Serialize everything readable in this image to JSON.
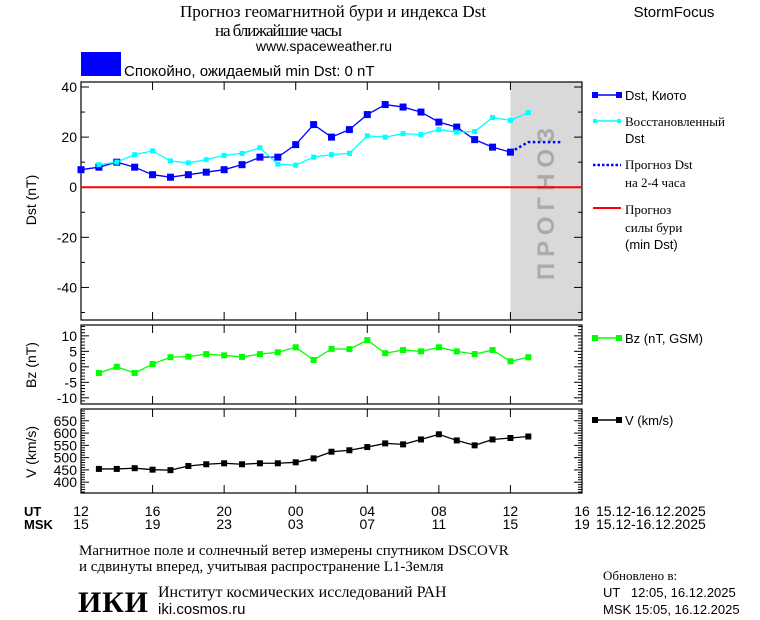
{
  "header": {
    "title_line1": "Прогноз геомагнитной бури и индекса Dst",
    "title_line2": "на ближайшие часы",
    "url": "www.spaceweather.ru",
    "brand": "StormFocus",
    "status_text": "Спокойно, ожидаемый min Dst: 0 nT",
    "status_color": "#0000ff"
  },
  "legend": {
    "dst_kyoto": "Dst, Киото",
    "restored_1": "Восстановленный",
    "restored_2": "Dst",
    "forecast_1": "Прогноз Dst",
    "forecast_2": "на 2-4 часа",
    "storm_1": "Прогноз",
    "storm_2": "силы бури",
    "storm_3": "(min Dst)",
    "bz": "Bz (nT, GSM)",
    "v": "V (km/s)"
  },
  "forecast_band_label": "ПРОГНОЗ",
  "x_axis": {
    "ut_label": "UT",
    "msk_label": "MSK",
    "ut_ticks": [
      "12",
      "16",
      "20",
      "00",
      "04",
      "08",
      "12",
      "16"
    ],
    "msk_ticks": [
      "15",
      "19",
      "23",
      "03",
      "07",
      "11",
      "15",
      "19"
    ],
    "date_range_ut": "15.12-16.12.2025",
    "date_range_msk": "15.12-16.12.2025"
  },
  "footer": {
    "note_1": "Магнитное поле и солнечный ветер измерены спутником DSCOVR",
    "note_2": "и сдвинуты вперед, учитывая распространение L1-Земля",
    "institute": "Институт космических исследований РАН",
    "institute_url": "iki.cosmos.ru",
    "logo_text": "ИКИ",
    "updated_label": "Обновлено в:",
    "updated_ut": "UT   12:05, 16.12.2025",
    "updated_msk": "MSK 15:05, 16.12.2025"
  },
  "chart_data": [
    {
      "type": "line",
      "ylabel": "Dst (nT)",
      "x_unit": "hours since 12 UT 15.12.2025",
      "xlim": [
        0,
        28
      ],
      "ylim": [
        -53,
        42
      ],
      "yticks": [
        -40,
        -20,
        0,
        20,
        40
      ],
      "forecast_region": [
        24,
        28
      ],
      "series": [
        {
          "name": "Dst, Киото",
          "color": "#0000ff",
          "x_start": 0,
          "values": [
            7,
            8,
            10,
            8,
            5,
            4,
            5,
            6,
            7,
            9,
            12,
            12,
            17,
            25,
            20,
            23,
            29,
            33,
            32,
            30,
            26,
            24,
            19,
            16,
            14
          ]
        },
        {
          "name": "Восстановленный Dst",
          "color": "#00ffff",
          "x_start": 1,
          "values": [
            9,
            10,
            13,
            14.5,
            10.5,
            9.7,
            11,
            12.7,
            13.5,
            15.7,
            9.2,
            8.8,
            12,
            13,
            13.5,
            20.5,
            20,
            21.4,
            21,
            23,
            22,
            22.2,
            27.8,
            26.7,
            29.8
          ]
        },
        {
          "name": "Прогноз Dst на 2-4 часа",
          "color": "#0000ff",
          "style": "dotted",
          "x": [
            24,
            25,
            26.8
          ],
          "values": [
            14,
            18,
            18
          ]
        },
        {
          "name": "Прогноз силы бури (min Dst)",
          "color": "#ff0000",
          "constant": 0
        }
      ]
    },
    {
      "type": "line",
      "ylabel": "Bz (nT)",
      "ylim": [
        -12,
        13.5
      ],
      "yticks": [
        -10,
        -5,
        0,
        5,
        10
      ],
      "series": [
        {
          "name": "Bz (nT, GSM)",
          "color": "#00ff00",
          "x_start": 1,
          "values": [
            -2,
            0,
            -2,
            0.9,
            3.1,
            3.3,
            4.1,
            3.7,
            3.2,
            4.1,
            4.7,
            6.3,
            2.2,
            5.8,
            5.7,
            8.6,
            4.4,
            5.4,
            5,
            6.3,
            5,
            4.1,
            5.4,
            1.8,
            3.1
          ]
        }
      ]
    },
    {
      "type": "line",
      "ylabel": "V (km/s)",
      "ylim": [
        356,
        698
      ],
      "yticks": [
        400,
        450,
        500,
        550,
        600,
        650
      ],
      "series": [
        {
          "name": "V (km/s)",
          "color": "#000000",
          "x_start": 1,
          "values": [
            454,
            454,
            457,
            451,
            449,
            466,
            473,
            477,
            473,
            477,
            477,
            481,
            497,
            524,
            530,
            543,
            558,
            554,
            574,
            595,
            570,
            550,
            574,
            580,
            586
          ]
        }
      ]
    }
  ]
}
